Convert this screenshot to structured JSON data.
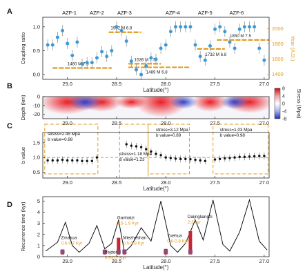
{
  "chart_data": [
    {
      "panel": "A",
      "type": "scatter",
      "xlabel": "Latitude(°)",
      "ylabel": "Coupling ratio",
      "ylabel_right": "Year (A.D.)",
      "xlim": [
        29.25,
        26.95
      ],
      "ylim": [
        -0.1,
        1.2
      ],
      "ylim_right": [
        1330,
        2150
      ],
      "x_ticks": [
        "29.0",
        "28.5",
        "28.0",
        "27.5",
        "27.0"
      ],
      "y_ticks": [
        "0.0",
        "0.5",
        "1.0"
      ],
      "y_right_ticks": [
        "1400",
        "1600",
        "1800",
        "2000"
      ],
      "zones": [
        "AZF-1",
        "AZF-2",
        "AZF-3",
        "AZF-4",
        "AZF-5",
        "AZF-6"
      ],
      "series": [
        {
          "x": [
            29.2,
            29.15,
            29.1,
            29.05,
            29.0,
            28.95,
            28.9,
            28.85,
            28.8,
            28.75,
            28.7,
            28.65,
            28.6,
            28.55,
            28.5,
            28.45,
            28.4,
            28.35,
            28.3,
            28.25,
            28.2,
            28.15,
            28.1,
            28.05,
            28.0,
            27.95,
            27.9,
            27.85,
            27.8,
            27.75,
            27.7,
            27.65,
            27.6,
            27.55,
            27.5,
            27.45,
            27.4,
            27.35,
            27.3,
            27.25,
            27.2,
            27.15,
            27.1,
            27.05,
            27.0
          ],
          "y": [
            0.62,
            0.62,
            0.78,
            0.92,
            0.65,
            0.4,
            0.68,
            0.22,
            0.25,
            0.25,
            0.35,
            0.48,
            0.38,
            0.5,
            1.0,
            0.92,
            0.7,
            0.28,
            0.1,
            0.0,
            0.18,
            0.35,
            0.32,
            0.55,
            0.62,
            0.9,
            1.0,
            1.0,
            1.0,
            1.0,
            0.62,
            0.38,
            0.3,
            0.6,
            0.95,
            1.0,
            0.9,
            0.68,
            0.55,
            0.95,
            1.0,
            1.0,
            1.0,
            0.55,
            0.3
          ]
        }
      ],
      "earthquakes": [
        {
          "label": "1480 M 7.5",
          "x_from": 29.15,
          "x_to": 28.55,
          "year": 1480
        },
        {
          "label": "1952 M 6.8",
          "x_from": 28.58,
          "x_to": 28.25,
          "year": 1952
        },
        {
          "label": "1536 M 7.5",
          "x_from": 28.38,
          "x_to": 28.05,
          "year": 1536
        },
        {
          "label": "1489 M 6.8",
          "x_from": 28.38,
          "x_to": 27.75,
          "year": 1489
        },
        {
          "label": "1732 M 6.8",
          "x_from": 27.68,
          "x_to": 27.4,
          "year": 1732
        },
        {
          "label": "1850 M 7.5",
          "x_from": 27.48,
          "x_to": 26.95,
          "year": 1850
        }
      ]
    },
    {
      "panel": "B",
      "type": "heatmap",
      "xlabel": "Latitude(°)",
      "ylabel": "Depth (km)",
      "colorbar_label": "Stress (Mpa)",
      "colorbar_ticks": [
        "8",
        "4",
        "0",
        "-4",
        "-8"
      ],
      "y_ticks": [
        "0",
        "-10",
        "-20"
      ],
      "x_ticks": [
        "29.0",
        "28.5",
        "28.0",
        "27.5",
        "27.0"
      ]
    },
    {
      "panel": "C",
      "type": "scatter",
      "xlabel": "Latitude(°)",
      "ylabel": "b value",
      "ylim": [
        0.3,
        1.85
      ],
      "y_ticks": [
        "0.5",
        "1.0",
        "1.5"
      ],
      "x_ticks": [
        "29.0",
        "28.5",
        "28.0",
        "27.5",
        "27.0"
      ],
      "reference_line": 1.0,
      "series": [
        {
          "x": [
            29.2,
            29.15,
            29.1,
            29.05,
            29.0,
            28.95,
            28.9,
            28.85,
            28.8,
            28.75,
            28.7,
            28.4,
            28.35,
            28.3,
            28.25,
            28.2,
            28.15,
            28.1,
            28.05,
            28.0,
            27.95,
            27.9,
            27.85,
            27.8,
            27.75,
            27.7,
            27.65,
            27.6,
            27.5,
            27.45,
            27.4,
            27.35,
            27.3,
            27.25,
            27.2,
            27.15,
            27.1,
            27.05,
            27.0
          ],
          "y": [
            0.9,
            0.9,
            0.9,
            0.92,
            0.9,
            0.9,
            0.9,
            0.88,
            0.88,
            0.88,
            1.0,
            1.45,
            1.4,
            1.38,
            1.35,
            1.28,
            1.2,
            1.12,
            1.08,
            1.0,
            0.98,
            0.96,
            0.95,
            0.95,
            0.94,
            0.92,
            0.9,
            0.88,
            0.93,
            0.95,
            0.97,
            0.98,
            1.0,
            1.02,
            1.02,
            1.03,
            1.04,
            1.05,
            1.05
          ]
        }
      ],
      "annotations": [
        {
          "stress": "stress=2.45 Mpa",
          "b": "b value=0.88"
        },
        {
          "stress": "stress=1.18 Mpa",
          "b": "b value=1.23"
        },
        {
          "stress": "stress=3.12 Mpa",
          "b": "b value=0.89"
        },
        {
          "stress": "stress=1.03 Mpa",
          "b": "b value=0.98"
        }
      ]
    },
    {
      "panel": "D",
      "type": "line",
      "xlabel": "Latitude(°)",
      "ylabel": "Recurrence time (kyr)",
      "ylim": [
        0,
        5.4
      ],
      "y_ticks": [
        "0",
        "1",
        "2",
        "3",
        "4",
        "5"
      ],
      "x_ticks": [
        "29.0",
        "28.5",
        "28.0",
        "27.5",
        "27.0"
      ],
      "sites": [
        {
          "name": "Zmakua",
          "label": "0.6-0.7 Kyr",
          "x": 29.05,
          "y": 0.65
        },
        {
          "name": "Yejdong",
          "label": "0.5-0.7 Kyr",
          "x": 28.62,
          "y": 0.6
        },
        {
          "name": "Ganhaizi",
          "label": "1.5-1.9 Kyr",
          "x": 28.48,
          "y": 1.7
        },
        {
          "name": "Miezheshan",
          "label": "0.5-0.8 Kyr",
          "x": 28.42,
          "y": 0.65
        },
        {
          "name": "Yuehua",
          "label": "0.6-0.8 Kyr",
          "x": 28.0,
          "y": 0.7
        },
        {
          "name": "Daijngliangzi",
          "label": "2.3 kyr",
          "x": 27.75,
          "y": 2.3
        }
      ]
    }
  ],
  "panel_labels": [
    "A",
    "B",
    "C",
    "D"
  ]
}
